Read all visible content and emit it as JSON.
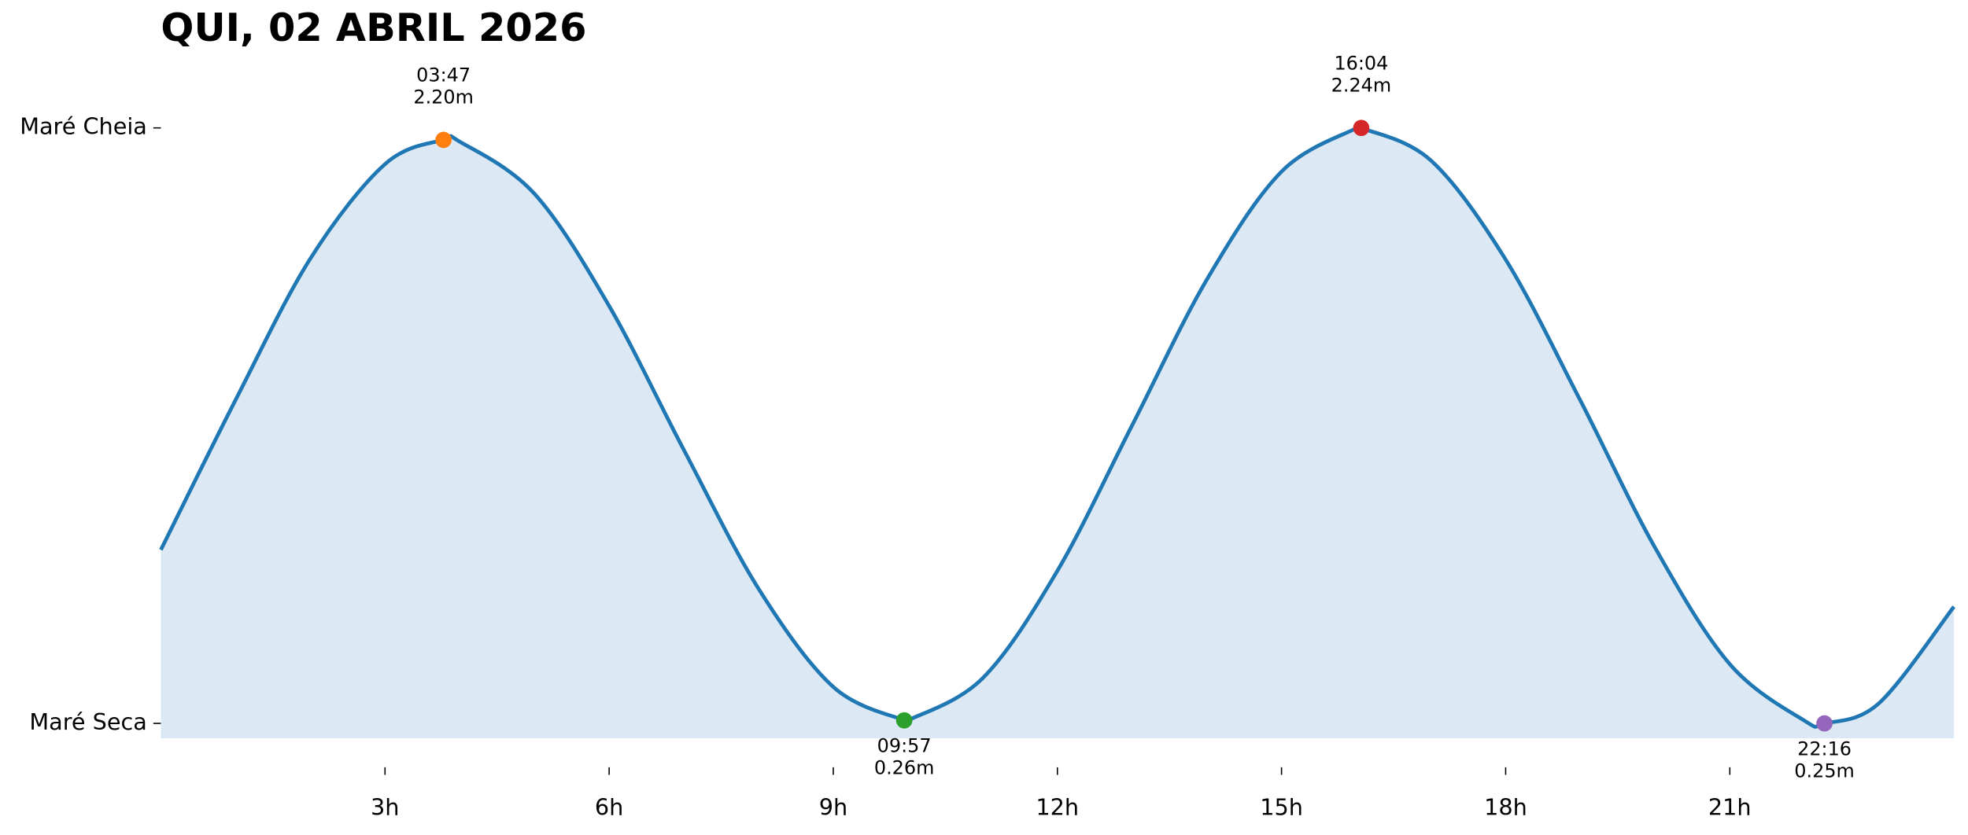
{
  "chart_data": {
    "type": "tide",
    "title": "QUI, 02 ABRIL 2026",
    "x": [
      0,
      1,
      2,
      3,
      3.783,
      4,
      5,
      6,
      7,
      8,
      9,
      9.95,
      10,
      11,
      12,
      13,
      14,
      15,
      16,
      16.067,
      17,
      18,
      19,
      20,
      21,
      22,
      22.267,
      23,
      24
    ],
    "values": [
      0.83,
      1.331,
      1.803,
      2.119,
      2.2,
      2.194,
      2.02,
      1.645,
      1.164,
      0.7,
      0.372,
      0.26,
      0.26,
      0.401,
      0.76,
      1.246,
      1.733,
      2.094,
      2.239,
      2.24,
      2.131,
      1.8,
      1.329,
      0.837,
      0.448,
      0.259,
      0.25,
      0.318,
      0.64
    ],
    "color": "#1f77b4",
    "fill_color": "#dce8f3",
    "extremes": {
      "x": [
        3.783,
        9.95,
        16.067,
        22.267
      ],
      "x_labels": [
        "03:47",
        "09:57",
        "16:04",
        "22:16"
      ],
      "values": [
        2.2,
        0.26,
        2.24,
        0.25
      ],
      "value_labels": [
        "2.20m",
        "0.26m",
        "2.24m",
        "0.25m"
      ],
      "colors": [
        "#ff7f0e",
        "#2ca02c",
        "#d62728",
        "#9467bd"
      ]
    },
    "xlim": [
      0,
      24
    ],
    "xticks": [
      {
        "value": 3,
        "label": "3h"
      },
      {
        "value": 6,
        "label": "6h"
      },
      {
        "value": 9,
        "label": "9h"
      },
      {
        "value": 12,
        "label": "12h"
      },
      {
        "value": 15,
        "label": "15h"
      },
      {
        "value": 18,
        "label": "18h"
      },
      {
        "value": 21,
        "label": "21h"
      }
    ],
    "ylim": [
      0.2,
      2.3
    ],
    "yticks": [
      {
        "value": 0.25,
        "label": "Maré Seca"
      },
      {
        "value": 2.24,
        "label": "Maré Cheia"
      }
    ]
  }
}
